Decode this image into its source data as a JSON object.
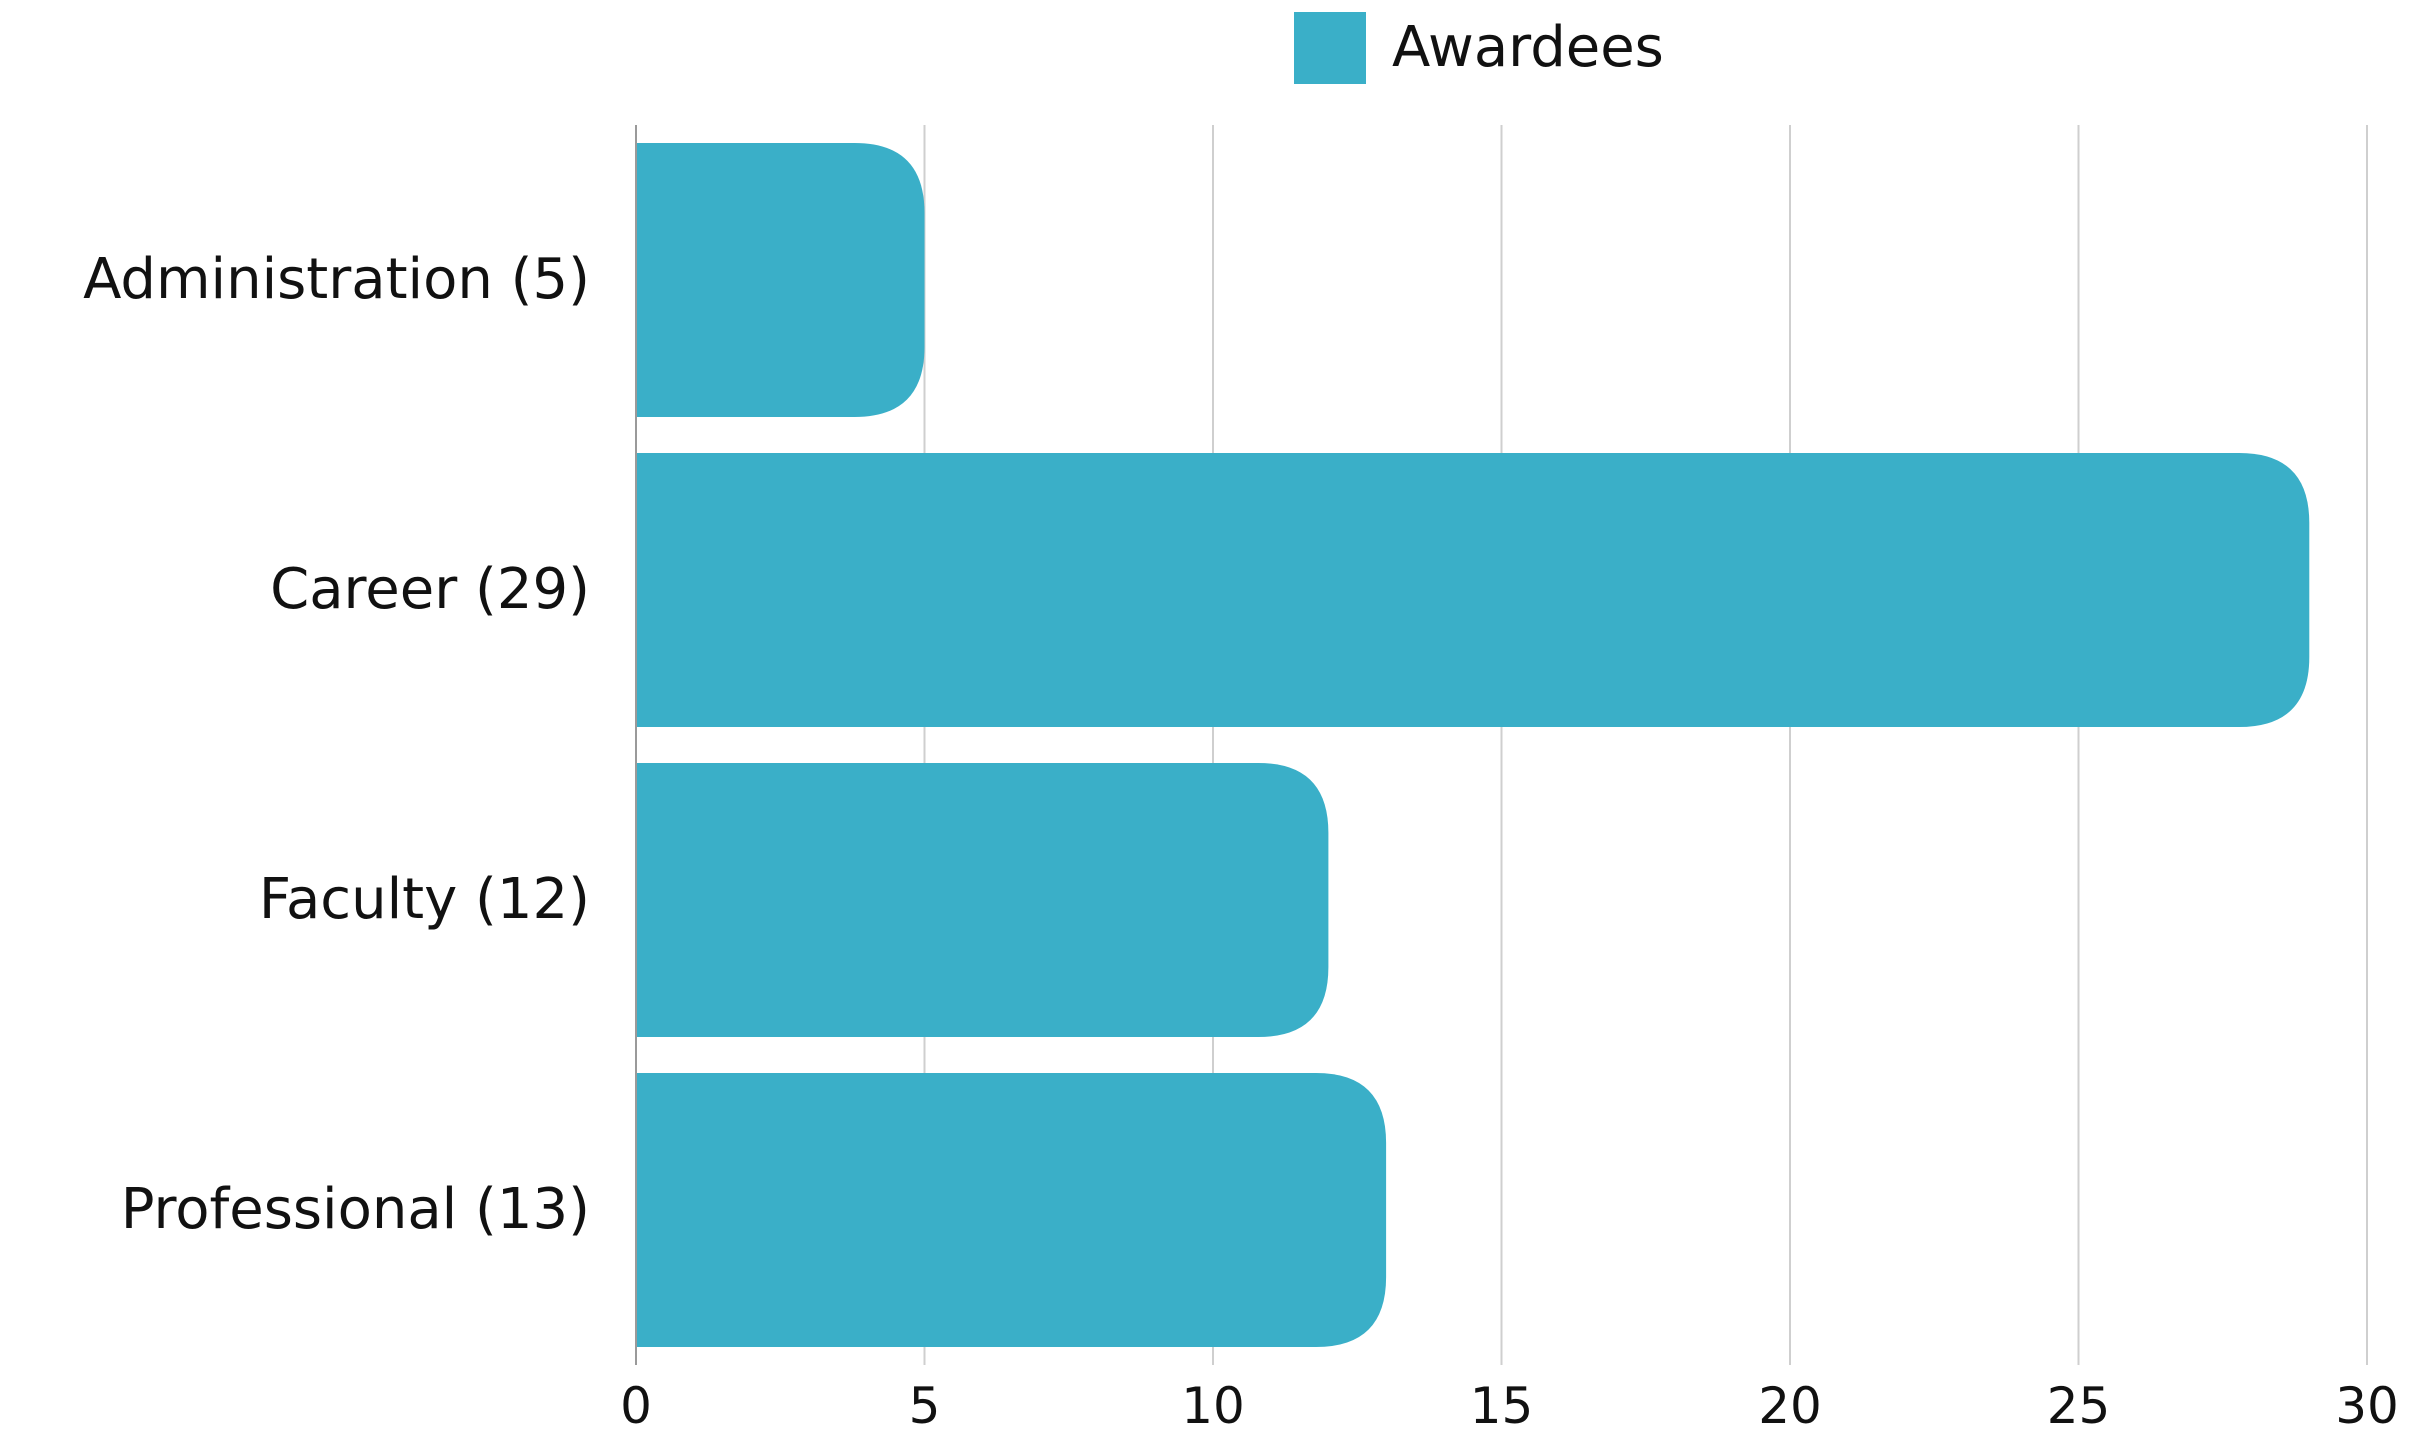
{
  "chart_data": {
    "type": "bar",
    "orientation": "horizontal",
    "title": "",
    "xlabel": "",
    "ylabel": "",
    "categories": [
      "Administration (5)",
      "Career (29)",
      "Faculty (12)",
      "Professional (13)"
    ],
    "series": [
      {
        "name": "Awardees",
        "values": [
          5,
          29,
          12,
          13
        ],
        "color": "#3AAFC8"
      }
    ],
    "xlim": [
      0,
      30
    ],
    "xticks": [
      "0",
      "5",
      "10",
      "15",
      "20",
      "25",
      "30"
    ],
    "grid": true,
    "legend_position": "top-center"
  }
}
